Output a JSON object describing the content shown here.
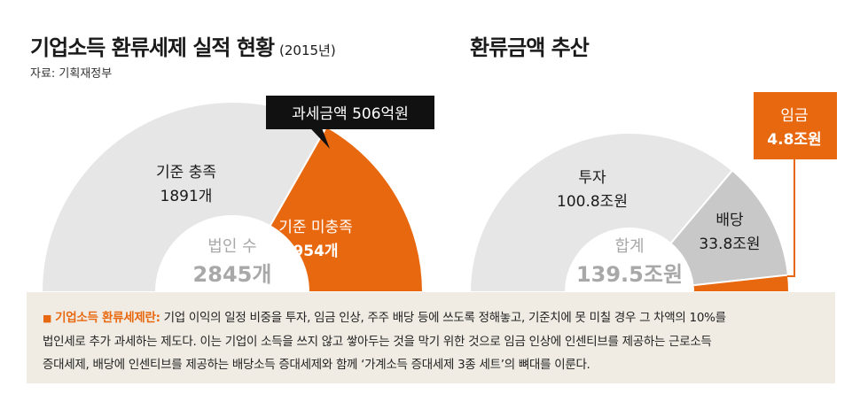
{
  "left_title": "기업소득 환류세제 실적 현황",
  "left_year": "(2015년)",
  "source": "자료: 기획재정부",
  "right_title": "환류금액 추산",
  "colors": {
    "orange": "#e8680f",
    "light_gray": "#e6e6e6",
    "mid_gray": "#c8c8c8",
    "black": "#111111"
  },
  "chart_data": [
    {
      "type": "pie",
      "shape": "semi-donut",
      "slices": [
        {
          "label": "기준 충족",
          "value": 1891,
          "value_text": "1891개",
          "color": "#e6e6e6"
        },
        {
          "label": "기준 미충족",
          "value": 954,
          "value_text": "954개",
          "color": "#e8680f"
        }
      ],
      "center_label": "법인 수",
      "center_value": "2845개",
      "callout": "과세금액   506억원"
    },
    {
      "type": "pie",
      "shape": "semi-donut",
      "slices": [
        {
          "label": "투자",
          "value": 100.8,
          "value_text": "100.8조원",
          "color": "#e6e6e6"
        },
        {
          "label": "배당",
          "value": 33.8,
          "value_text": "33.8조원",
          "color": "#c8c8c8"
        },
        {
          "label": "임금",
          "value": 4.8,
          "value_text": "4.8조원",
          "color": "#e8680f"
        }
      ],
      "center_label": "합계",
      "center_value": "139.5조원"
    }
  ],
  "note": {
    "heading": "기업소득 환류세제란:",
    "lines": [
      " 기업 이익의 일정 비중을 투자, 임금 인상, 주주 배당 등에 쓰도록 정해놓고, 기준치에 못 미칠 경우 그 차액의 10%를",
      "법인세로 추가 과세하는 제도다. 이는 기업이 소득을 쓰지 않고 쌓아두는 것을 막기 위한 것으로 임금 인상에 인센티브를 제공하는 근로소득",
      "증대세제, 배당에 인센티브를 제공하는 배당소득 증대세제와 함께 ‘가계소득 증대세제 3종 세트’의 뼈대를 이룬다."
    ]
  }
}
